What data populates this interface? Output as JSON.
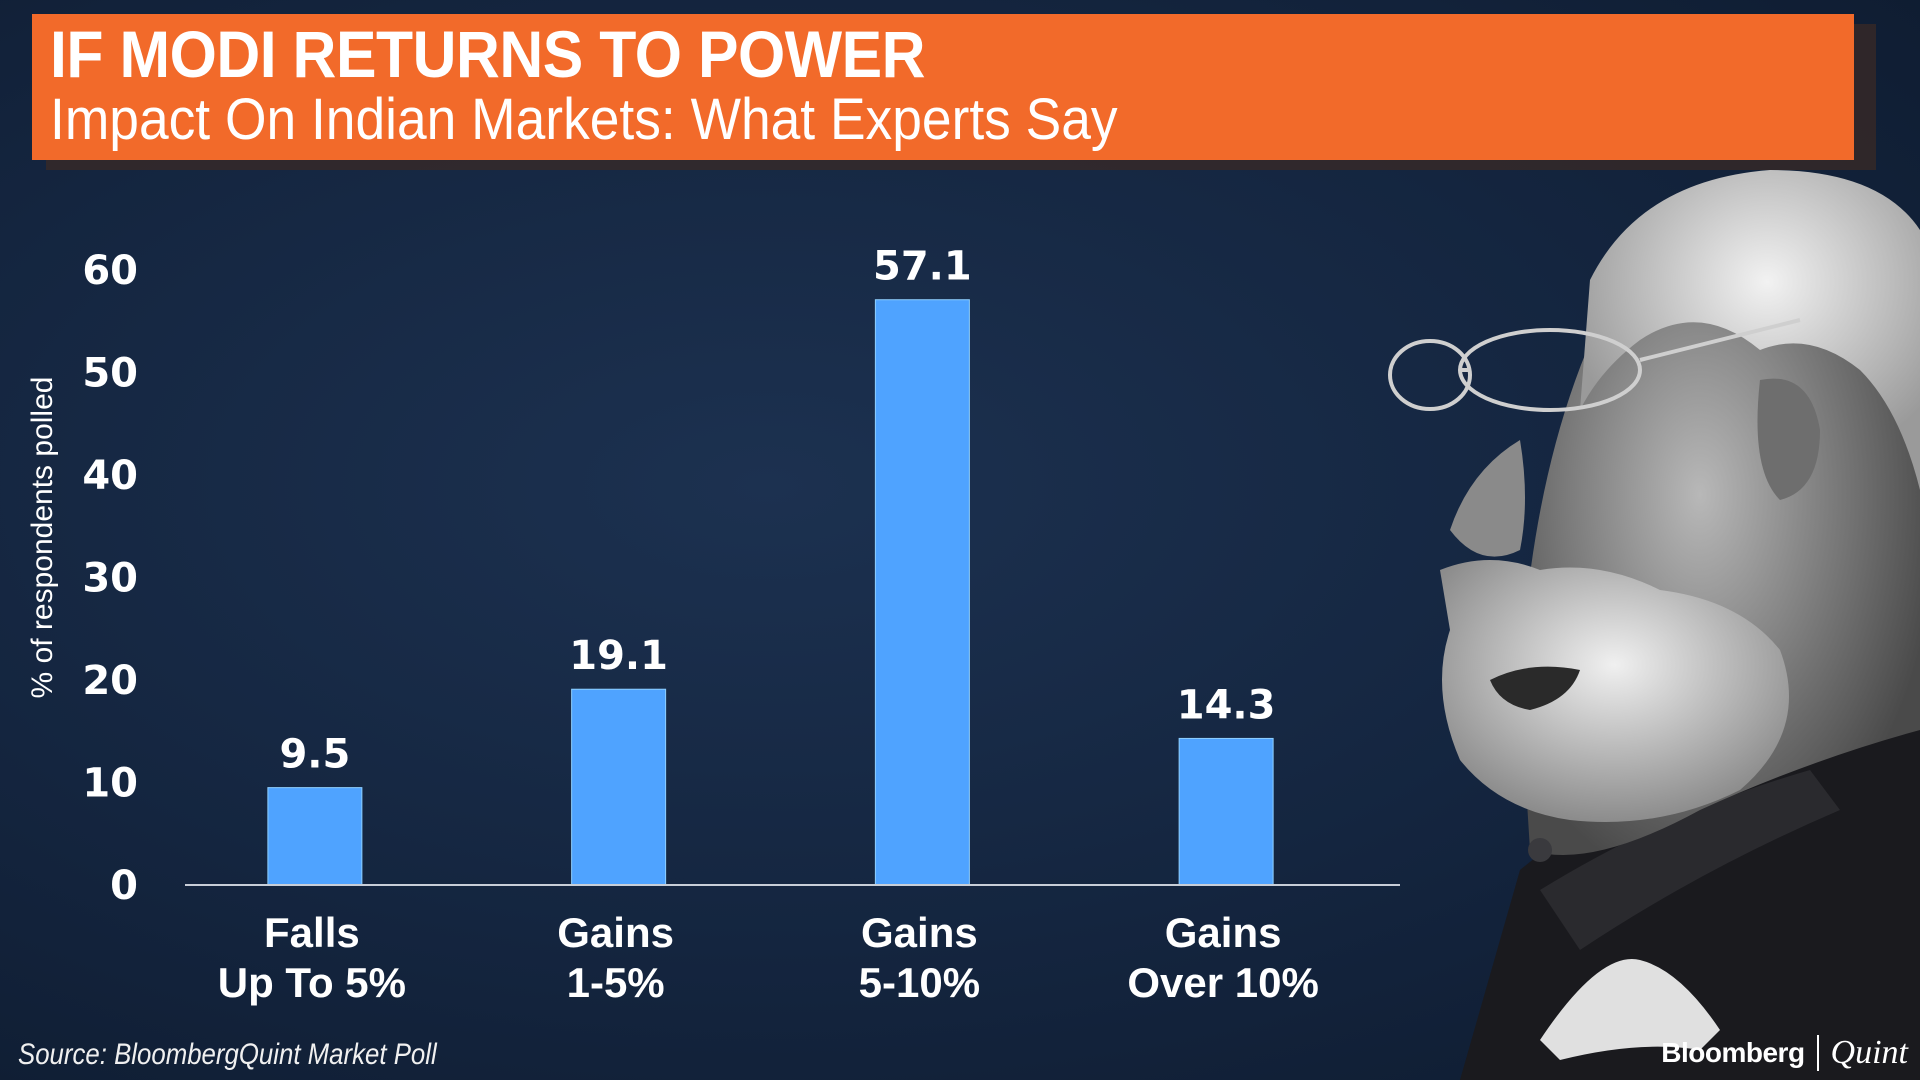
{
  "header": {
    "title": "IF MODI RETURNS TO POWER",
    "subtitle": "Impact On Indian Markets: What Experts Say"
  },
  "chart_data": {
    "type": "bar",
    "title": "IF MODI RETURNS TO POWER",
    "subtitle": "Impact On Indian Markets: What Experts Say",
    "categories": [
      [
        "Falls",
        "Up To 5%"
      ],
      [
        "Gains",
        "1-5%"
      ],
      [
        "Gains",
        "5-10%"
      ],
      [
        "Gains",
        "Over 10%"
      ]
    ],
    "values": [
      9.5,
      19.1,
      57.1,
      14.3
    ],
    "value_labels": [
      "9.5",
      "19.1",
      "57.1",
      "14.3"
    ],
    "xlabel": "",
    "ylabel": "% of respondents polled",
    "ylim": [
      0,
      60
    ],
    "yticks": [
      0,
      10,
      20,
      30,
      40,
      50,
      60
    ],
    "grid": false,
    "legend": "none"
  },
  "footer": {
    "source": "Source: BloombergQuint Market Poll",
    "logo_left": "Bloomberg",
    "logo_right": "Quint"
  },
  "colors": {
    "background": "#14253f",
    "header": "#f26a2a",
    "bar": "#4fa3ff",
    "axis": "#c8ced8"
  },
  "image": {
    "portrait": "person-portrait-photo"
  }
}
